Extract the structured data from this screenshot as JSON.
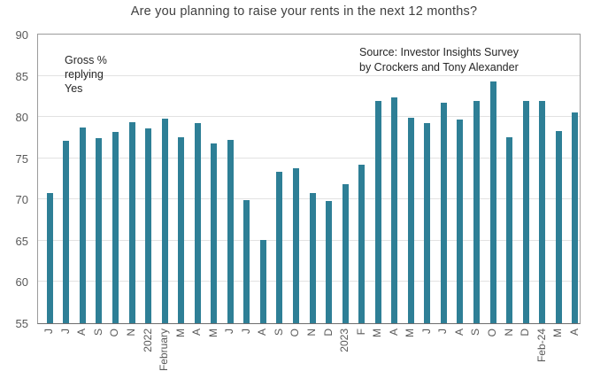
{
  "title": "Are you planning to raise your rents in the next 12 months?",
  "notes": {
    "gross_label": "Gross %\nreplying\nYes",
    "source_label": "Source: Investor Insights Survey\nby Crockers and Tony Alexander"
  },
  "colors": {
    "bar": "#2e7f96",
    "gridline": "#e2e2e2",
    "axis_text": "#595959",
    "title_text": "#404040",
    "plot_border": "#9b9b9b"
  },
  "chart_data": {
    "type": "bar",
    "title": "Are you planning to raise your rents in the next 12 months?",
    "xlabel": "",
    "ylabel": "",
    "ylim": [
      55,
      90
    ],
    "yticks": [
      55,
      60,
      65,
      70,
      75,
      80,
      85,
      90
    ],
    "grid": "horizontal",
    "legend": "none",
    "bar_color": "#2e7f96",
    "annotation_left": "Gross % replying Yes",
    "annotation_source": "Source: Investor Insights Survey by Crockers and Tony Alexander",
    "categories": [
      "J",
      "J",
      "A",
      "S",
      "O",
      "N",
      "2022",
      "February",
      "M",
      "A",
      "M",
      "J",
      "J",
      "A",
      "S",
      "O",
      "N",
      "D",
      "2023",
      "F",
      "M",
      "A",
      "M",
      "J",
      "J",
      "A",
      "S",
      "O",
      "N",
      "D",
      "Feb-24",
      "M",
      "A"
    ],
    "values": [
      70.8,
      77.1,
      78.7,
      77.4,
      78.2,
      79.4,
      78.6,
      79.8,
      77.6,
      79.3,
      76.8,
      77.2,
      69.9,
      65.1,
      73.4,
      73.8,
      70.8,
      69.8,
      71.9,
      74.2,
      81.9,
      82.4,
      79.9,
      79.3,
      81.7,
      79.7,
      82.0,
      84.3,
      77.6,
      82.0,
      82.0,
      78.3,
      80.6
    ]
  }
}
